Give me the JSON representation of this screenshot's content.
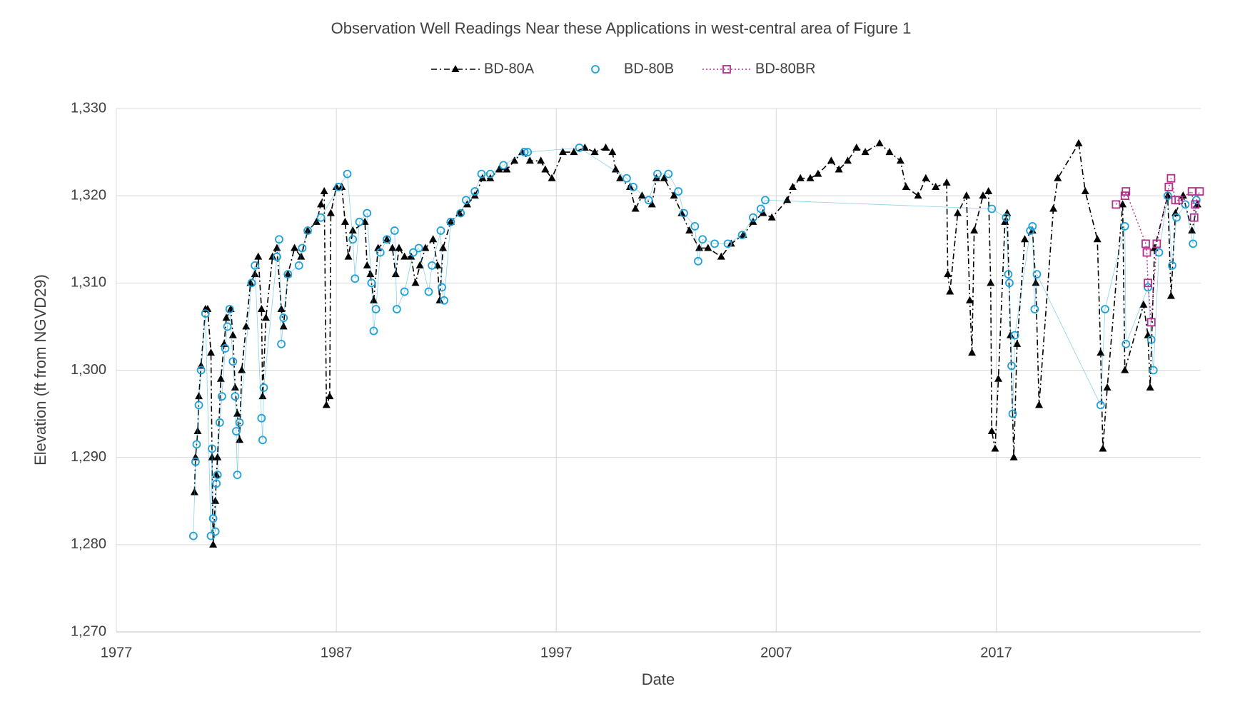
{
  "chart_data": {
    "type": "line",
    "title": "Observation Well Readings Near these Applications in west-central area of Figure 1",
    "xlabel": "Date",
    "ylabel": "Elevation (ft from NGVD29)",
    "xlim": [
      1977,
      2026.3
    ],
    "xticks": [
      1977,
      1987,
      1997,
      2007,
      2017
    ],
    "ylim": [
      1270,
      1330
    ],
    "yticks": [
      {
        "value": 1270,
        "label": "1,270"
      },
      {
        "value": 1280,
        "label": "1,280"
      },
      {
        "value": 1290,
        "label": "1,290"
      },
      {
        "value": 1300,
        "label": "1,300"
      },
      {
        "value": 1310,
        "label": "1,310"
      },
      {
        "value": 1320,
        "label": "1,320"
      },
      {
        "value": 1330,
        "label": "1,330"
      }
    ],
    "grid": true,
    "legend": "top",
    "series": [
      {
        "name": "BD-80A",
        "color": "#000000",
        "marker": "triangle",
        "line": "dashdot",
        "x": [
          1980.55,
          1980.6,
          1980.7,
          1980.75,
          1980.85,
          1981.05,
          1981.15,
          1981.3,
          1981.35,
          1981.4,
          1981.5,
          1981.55,
          1981.6,
          1981.75,
          1981.9,
          1982.0,
          1982.2,
          1982.3,
          1982.4,
          1982.5,
          1982.6,
          1982.7,
          1982.9,
          1983.1,
          1983.3,
          1983.45,
          1983.6,
          1983.65,
          1983.8,
          1984.1,
          1984.3,
          1984.5,
          1984.6,
          1984.8,
          1985.1,
          1985.4,
          1985.7,
          1986.1,
          1986.3,
          1986.45,
          1986.55,
          1986.7,
          1986.75,
          1987.0,
          1987.25,
          1987.4,
          1987.55,
          1987.75,
          1988.3,
          1988.4,
          1988.55,
          1988.7,
          1988.9,
          1989.3,
          1989.55,
          1989.7,
          1989.85,
          1990.1,
          1990.4,
          1990.6,
          1990.8,
          1991.05,
          1991.4,
          1991.6,
          1991.7,
          1991.85,
          1992.2,
          1992.6,
          1992.95,
          1993.3,
          1993.65,
          1994.0,
          1994.4,
          1994.75,
          1995.1,
          1995.45,
          1995.8,
          1996.3,
          1996.5,
          1996.8,
          1997.3,
          1997.8,
          1998.3,
          1998.75,
          1999.25,
          1999.55,
          1999.7,
          1999.9,
          2000.35,
          2000.6,
          2000.9,
          2001.35,
          2001.55,
          2001.9,
          2002.35,
          2002.7,
          2003.05,
          2003.5,
          2003.9,
          2004.5,
          2004.95,
          2005.5,
          2005.95,
          2006.4,
          2006.8,
          2007.5,
          2007.75,
          2008.1,
          2008.55,
          2008.9,
          2009.5,
          2009.85,
          2010.25,
          2010.65,
          2011.05,
          2011.7,
          2012.15,
          2012.65,
          2012.9,
          2013.45,
          2013.8,
          2014.25,
          2014.75,
          2014.8,
          2014.9,
          2015.25,
          2015.65,
          2015.8,
          2015.9,
          2016.0,
          2016.4,
          2016.65,
          2016.75,
          2016.8,
          2016.95,
          2017.1,
          2017.4,
          2017.5,
          2017.65,
          2017.8,
          2017.95,
          2018.3,
          2018.65,
          2018.8,
          2018.95,
          2019.6,
          2019.8,
          2020.75,
          2021.05,
          2021.6,
          2021.75,
          2021.85,
          2022.05,
          2022.75,
          2022.85,
          2023.7,
          2023.9,
          2024.0,
          2024.2,
          2024.8,
          2024.95,
          2025.15,
          2025.5,
          2025.9,
          2026.15
        ],
        "values": [
          1286,
          1290,
          1293,
          1297,
          1300.5,
          1307,
          1307,
          1302,
          1290,
          1280,
          1285,
          1288,
          1290,
          1299,
          1303,
          1306,
          1307,
          1304,
          1298,
          1295,
          1292,
          1300,
          1305,
          1310,
          1311,
          1313,
          1307,
          1297,
          1306,
          1313,
          1314,
          1307,
          1305,
          1311,
          1314,
          1313,
          1316,
          1317,
          1319,
          1320.5,
          1296,
          1297,
          1318,
          1321,
          1321,
          1317,
          1313,
          1316,
          1317,
          1312,
          1311,
          1308,
          1314,
          1315,
          1314,
          1311,
          1314,
          1313,
          1313,
          1310,
          1312,
          1314,
          1315,
          1312,
          1308,
          1314,
          1317,
          1318,
          1319,
          1320,
          1322,
          1322,
          1323,
          1323,
          1324,
          1325,
          1324,
          1324,
          1323,
          1322,
          1325,
          1325,
          1325.5,
          1325,
          1325.5,
          1325,
          1323,
          1322,
          1321,
          1318.5,
          1320,
          1319,
          1322,
          1322,
          1320,
          1318,
          1316,
          1314,
          1314,
          1313,
          1314.5,
          1315.5,
          1317,
          1318,
          1317.5,
          1319.5,
          1321,
          1322,
          1322,
          1322.5,
          1324,
          1323,
          1324,
          1325.5,
          1325,
          1326,
          1325,
          1324,
          1321,
          1320,
          1322,
          1321,
          1321.5,
          1311,
          1309,
          1318,
          1320,
          1308,
          1302,
          1316,
          1320,
          1320.5,
          1310,
          1293,
          1291,
          1299,
          1317,
          1318,
          1304,
          1290,
          1303,
          1315,
          1316,
          1310,
          1296,
          1318.5,
          1322,
          1326,
          1320.5,
          1315,
          1302,
          1291,
          1298,
          1319,
          1300,
          1307.5,
          1304,
          1298,
          1314,
          1320,
          1308.5,
          1318,
          1320,
          1316,
          1319
        ]
      },
      {
        "name": "BD-80B",
        "color": "#1ba1d8",
        "marker": "circle",
        "line": "solid",
        "x": [
          1980.5,
          1980.6,
          1980.65,
          1980.75,
          1980.85,
          1981.05,
          1981.3,
          1981.35,
          1981.4,
          1981.5,
          1981.55,
          1981.6,
          1981.7,
          1981.8,
          1981.95,
          1982.05,
          1982.15,
          1982.3,
          1982.4,
          1982.45,
          1982.5,
          1982.6,
          1983.15,
          1983.3,
          1983.6,
          1983.65,
          1983.7,
          1984.3,
          1984.4,
          1984.5,
          1984.6,
          1984.8,
          1985.3,
          1985.45,
          1985.7,
          1986.3,
          1987.1,
          1987.5,
          1987.75,
          1987.85,
          1988.05,
          1988.4,
          1988.6,
          1988.7,
          1988.8,
          1989.0,
          1989.3,
          1989.65,
          1989.75,
          1990.1,
          1990.5,
          1990.75,
          1991.2,
          1991.35,
          1991.75,
          1991.8,
          1991.9,
          1992.2,
          1992.65,
          1992.9,
          1993.3,
          1993.6,
          1994.0,
          1994.6,
          1995.55,
          1995.7,
          1998.05,
          2000.2,
          2000.5,
          2001.2,
          2001.6,
          2002.1,
          2002.55,
          2002.8,
          2003.3,
          2003.45,
          2003.65,
          2004.2,
          2004.8,
          2005.45,
          2005.95,
          2006.3,
          2006.5,
          2016.8,
          2017.45,
          2017.55,
          2017.6,
          2017.7,
          2017.75,
          2017.85,
          2018.55,
          2018.65,
          2018.75,
          2018.85,
          2021.75,
          2021.95,
          2022.85,
          2022.9,
          2023.9,
          2024.05,
          2024.15,
          2024.4,
          2024.8,
          2025.0,
          2025.2,
          2025.6,
          2025.95,
          2026.1
        ],
        "values": [
          1281,
          1289.5,
          1291.5,
          1296,
          1300,
          1306.5,
          1281,
          1291,
          1283,
          1281.5,
          1287,
          1288,
          1294,
          1297,
          1302.5,
          1305,
          1307,
          1301,
          1297,
          1293,
          1288,
          1294,
          1310,
          1312,
          1294.5,
          1292,
          1298,
          1313,
          1315,
          1303,
          1306,
          1311,
          1312,
          1314,
          1316,
          1317.5,
          1321,
          1322.5,
          1315,
          1310.5,
          1317,
          1318,
          1310,
          1304.5,
          1307,
          1313.5,
          1315,
          1316,
          1307,
          1309,
          1313.5,
          1314,
          1309,
          1312,
          1316,
          1309.5,
          1308,
          1317,
          1318,
          1319.5,
          1320.5,
          1322.5,
          1322.5,
          1323.5,
          1325,
          1325,
          1325.5,
          1322,
          1321,
          1319.5,
          1322.5,
          1322.5,
          1320.5,
          1318,
          1316.5,
          1312.5,
          1315,
          1314.5,
          1314.5,
          1315.5,
          1317.5,
          1318.5,
          1319.5,
          1318.5,
          1317.5,
          1311,
          1310,
          1300.5,
          1295,
          1304,
          1316,
          1316.5,
          1307,
          1311,
          1296,
          1307,
          1316.5,
          1303,
          1309.5,
          1303.5,
          1300,
          1313.5,
          1320,
          1312,
          1317.5,
          1319,
          1314.5,
          1319.5
        ]
      },
      {
        "name": "BD-80BR",
        "color": "#b0308c",
        "marker": "square",
        "line": "dotted",
        "x": [
          2022.45,
          2022.85,
          2022.9,
          2023.8,
          2023.85,
          2023.9,
          2024.05,
          2024.3,
          2024.85,
          2024.95,
          2025.15,
          2025.3,
          2025.9,
          2026.0,
          2026.05,
          2026.25
        ],
        "values": [
          1319,
          1320,
          1320.5,
          1314.5,
          1313.5,
          1310,
          1305.5,
          1314.5,
          1321,
          1322,
          1319.5,
          1319.5,
          1320.5,
          1317.5,
          1319,
          1320.5
        ]
      }
    ]
  }
}
